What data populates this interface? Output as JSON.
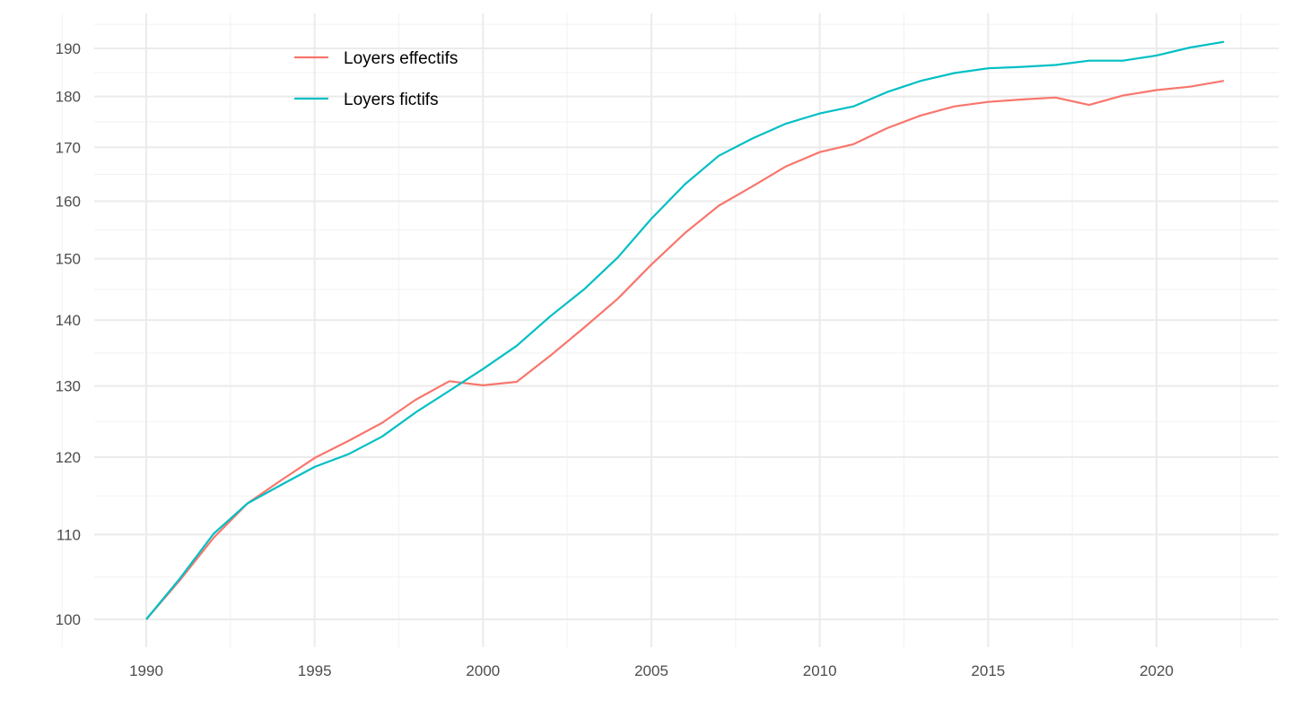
{
  "chart_data": {
    "type": "line",
    "title": "",
    "xlabel": "",
    "ylabel": "",
    "y_scale": "log",
    "xlim": [
      1986.5,
      2023.7
    ],
    "ylim": [
      98,
      196
    ],
    "x_ticks": [
      1990,
      1995,
      2000,
      2005,
      2010,
      2015,
      2020
    ],
    "y_ticks": [
      100,
      110,
      120,
      130,
      140,
      150,
      160,
      170,
      180,
      190
    ],
    "grid": true,
    "legend_position": "top-left",
    "x": [
      1990,
      1991,
      1992,
      1993,
      1994,
      1995,
      1996,
      1997,
      1998,
      1999,
      2000,
      2001,
      2002,
      2003,
      2004,
      2005,
      2006,
      2007,
      2008,
      2009,
      2010,
      2011,
      2012,
      2013,
      2014,
      2015,
      2016,
      2017,
      2018,
      2019,
      2020,
      2021,
      2022
    ],
    "series": [
      {
        "name": "Loyers effectifs",
        "color": "#F8766D",
        "values": [
          100,
          104.5,
          109.6,
          113.9,
          116.9,
          119.9,
          122.2,
          124.7,
          128.0,
          130.7,
          130.1,
          130.6,
          134.5,
          138.8,
          143.4,
          149.0,
          154.4,
          159.2,
          162.7,
          166.4,
          169.1,
          170.6,
          173.7,
          176.2,
          178.0,
          178.9,
          179.4,
          179.8,
          178.3,
          180.2,
          181.3,
          182.0,
          183.2
        ]
      },
      {
        "name": "Loyers fictifs",
        "color": "#00BFC4",
        "values": [
          100,
          104.7,
          110.1,
          113.9,
          116.3,
          118.7,
          120.4,
          122.8,
          126.2,
          129.3,
          132.5,
          136.0,
          140.6,
          144.9,
          150.2,
          156.9,
          163.1,
          168.4,
          171.7,
          174.6,
          176.6,
          178.0,
          180.9,
          183.2,
          184.8,
          185.8,
          186.1,
          186.5,
          187.4,
          187.4,
          188.5,
          190.2,
          191.4
        ]
      }
    ]
  }
}
